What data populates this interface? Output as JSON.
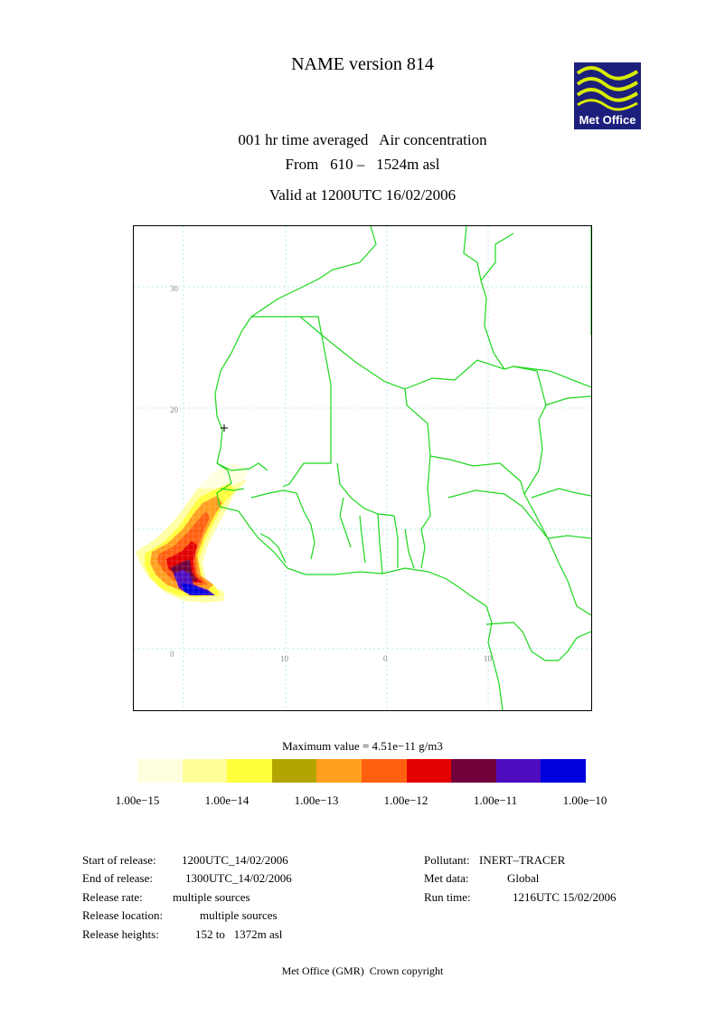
{
  "header": {
    "title": "NAME version 814",
    "subtitle_line1": "001 hr time averaged   Air concentration",
    "subtitle_line2": "From   610 –   1524m asl",
    "valid_at": "Valid at 1200UTC 16/02/2006"
  },
  "logo": {
    "text": "Met Office",
    "colors": {
      "background": "#1d1f7d",
      "waves": "#d8ec00"
    }
  },
  "map": {
    "latitude_labels": [
      "30",
      "20",
      "0"
    ],
    "longitude_labels": [
      "10",
      "0",
      "10"
    ],
    "colors": {
      "coastline": "#1bd81b",
      "grid": "#9fe6e6"
    }
  },
  "legend": {
    "max_value_text": "Maximum value = 4.51e−11 g/m3",
    "colors": [
      "#ffffe0",
      "#fffe99",
      "#ffff3c",
      "#b3a400",
      "#ff9f20",
      "#ff6010",
      "#e30000",
      "#71003a",
      "#4e0cbf",
      "#0000dd"
    ],
    "tick_labels": [
      "1.00e−15",
      "1.00e−14",
      "1.00e−13",
      "1.00e−12",
      "1.00e−11",
      "1.00e−10"
    ]
  },
  "release_info": {
    "start_label": "Start of release:",
    "start_value": "1200UTC_14/02/2006",
    "end_label": "End of release:",
    "end_value": "1300UTC_14/02/2006",
    "rate_label": "Release rate:",
    "rate_value": "multiple sources",
    "location_label": "Release location:",
    "location_value": "multiple sources",
    "heights_label": "Release heights:",
    "heights_value": "152 to   1372m asl"
  },
  "run_info": {
    "pollutant_label": "Pollutant:",
    "pollutant_value": "INERT–TRACER",
    "met_label": "Met data:",
    "met_value": "Global",
    "run_label": "Run time:",
    "run_value": "1216UTC 15/02/2006"
  },
  "footer": {
    "text": "Met Office (GMR)  Crown copyright"
  }
}
